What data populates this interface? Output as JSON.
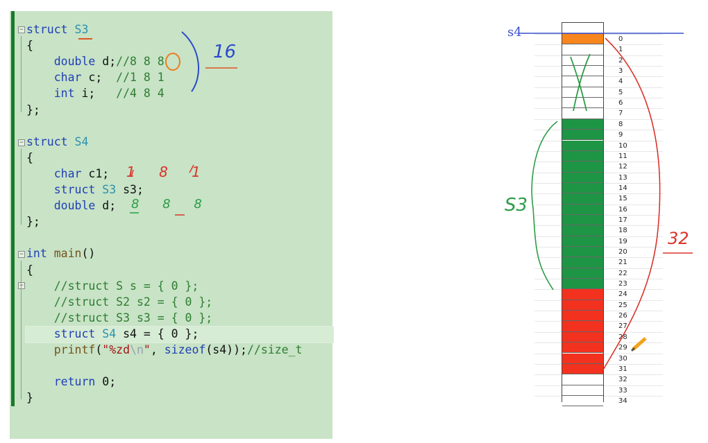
{
  "editor": {
    "lines": [
      {
        "spans": [
          [
            "kw",
            "struct"
          ],
          [
            "pl",
            " "
          ],
          [
            "ty",
            "S3"
          ]
        ]
      },
      {
        "spans": [
          [
            "pl",
            "{"
          ]
        ]
      },
      {
        "spans": [
          [
            "pl",
            "    "
          ],
          [
            "kw",
            "double"
          ],
          [
            "pl",
            " d;"
          ],
          [
            "cm",
            "//8 8 8"
          ]
        ]
      },
      {
        "spans": [
          [
            "pl",
            "    "
          ],
          [
            "kw",
            "char"
          ],
          [
            "pl",
            " c;  "
          ],
          [
            "cm",
            "//1 8 1"
          ]
        ]
      },
      {
        "spans": [
          [
            "pl",
            "    "
          ],
          [
            "kw",
            "int"
          ],
          [
            "pl",
            " i;   "
          ],
          [
            "cm",
            "//4 8 4"
          ]
        ]
      },
      {
        "spans": [
          [
            "pl",
            "};"
          ]
        ]
      },
      {
        "spans": []
      },
      {
        "spans": [
          [
            "kw",
            "struct"
          ],
          [
            "pl",
            " "
          ],
          [
            "ty",
            "S4"
          ]
        ]
      },
      {
        "spans": [
          [
            "pl",
            "{"
          ]
        ]
      },
      {
        "spans": [
          [
            "pl",
            "    "
          ],
          [
            "kw",
            "char"
          ],
          [
            "pl",
            " c1;"
          ]
        ]
      },
      {
        "spans": [
          [
            "pl",
            "    "
          ],
          [
            "kw",
            "struct"
          ],
          [
            "pl",
            " "
          ],
          [
            "ty",
            "S3"
          ],
          [
            "pl",
            " s3;"
          ]
        ]
      },
      {
        "spans": [
          [
            "pl",
            "    "
          ],
          [
            "kw",
            "double"
          ],
          [
            "pl",
            " d;"
          ]
        ]
      },
      {
        "spans": [
          [
            "pl",
            "};"
          ]
        ]
      },
      {
        "spans": []
      },
      {
        "spans": [
          [
            "kw",
            "int"
          ],
          [
            "pl",
            " "
          ],
          [
            "fn",
            "main"
          ],
          [
            "pl",
            "()"
          ]
        ]
      },
      {
        "spans": [
          [
            "pl",
            "{"
          ]
        ]
      },
      {
        "spans": [
          [
            "pl",
            "    "
          ],
          [
            "cm",
            "//struct S s = { 0 };"
          ]
        ]
      },
      {
        "spans": [
          [
            "pl",
            "    "
          ],
          [
            "cm",
            "//struct S2 s2 = { 0 };"
          ]
        ]
      },
      {
        "spans": [
          [
            "pl",
            "    "
          ],
          [
            "cm",
            "//struct S3 s3 = { 0 };"
          ]
        ]
      },
      {
        "spans": [
          [
            "pl",
            "    "
          ],
          [
            "kw",
            "struct"
          ],
          [
            "pl",
            " "
          ],
          [
            "ty",
            "S4"
          ],
          [
            "pl",
            " s4 = { 0 };"
          ]
        ]
      },
      {
        "spans": [
          [
            "pl",
            "    "
          ],
          [
            "fn",
            "printf"
          ],
          [
            "pl",
            "("
          ],
          [
            "st",
            "\"%zd"
          ],
          [
            "esc",
            "\\n"
          ],
          [
            "st",
            "\""
          ],
          [
            "pl",
            ", "
          ],
          [
            "kw",
            "sizeof"
          ],
          [
            "pl",
            "(s4));"
          ],
          [
            "cm",
            "//size_t"
          ]
        ]
      },
      {
        "spans": []
      },
      {
        "spans": [
          [
            "pl",
            "    "
          ],
          [
            "kw",
            "return"
          ],
          [
            "pl",
            " 0;"
          ]
        ]
      },
      {
        "spans": [
          [
            "pl",
            "}"
          ]
        ]
      }
    ]
  },
  "memory": {
    "cells": [
      "orange",
      "white",
      "white",
      "white",
      "white",
      "white",
      "white",
      "white",
      "green",
      "green",
      "green",
      "green",
      "green",
      "green",
      "green",
      "green",
      "green",
      "green",
      "green",
      "green",
      "green",
      "green",
      "green",
      "green",
      "red",
      "red",
      "red",
      "red",
      "red",
      "red",
      "red",
      "red",
      "white",
      "white",
      "white"
    ],
    "colors": {
      "orange": "#f7861e",
      "green": "#1e9545",
      "red": "#f2311f",
      "white": "#ffffff"
    },
    "indices": [
      "0",
      "1",
      "2",
      "3",
      "4",
      "5",
      "6",
      "7",
      "8",
      "9",
      "10",
      "11",
      "12",
      "13",
      "14",
      "15",
      "16",
      "17",
      "18",
      "19",
      "20",
      "21",
      "22",
      "23",
      "24",
      "25",
      "26",
      "27",
      "28",
      "29",
      "30",
      "31",
      "32",
      "33",
      "34"
    ]
  },
  "annotations": {
    "s4_label": "s4",
    "s3_label": "S3",
    "total_32": "32",
    "size_16": "16",
    "c1_notes": "1 8 1",
    "d_notes": "8 8 8"
  }
}
